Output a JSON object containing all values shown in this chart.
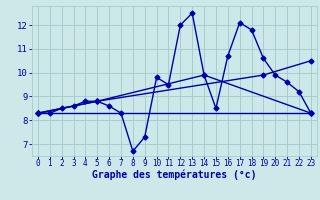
{
  "xlabel": "Graphe des températures (°c)",
  "background_color": "#cde8e8",
  "line_color": "#0000aa",
  "xlim": [
    -0.5,
    23.5
  ],
  "ylim": [
    6.5,
    12.8
  ],
  "xticks": [
    0,
    1,
    2,
    3,
    4,
    5,
    6,
    7,
    8,
    9,
    10,
    11,
    12,
    13,
    14,
    15,
    16,
    17,
    18,
    19,
    20,
    21,
    22,
    23
  ],
  "yticks": [
    7,
    8,
    9,
    10,
    11,
    12
  ],
  "grid_color": "#aacccc",
  "series1_x": [
    0,
    1,
    2,
    3,
    4,
    5,
    6,
    7,
    8,
    9,
    10,
    11,
    12,
    13,
    14,
    15,
    16,
    17,
    18,
    19,
    20,
    21,
    22,
    23
  ],
  "series1_y": [
    8.3,
    8.3,
    8.5,
    8.6,
    8.8,
    8.8,
    8.6,
    8.3,
    6.7,
    7.3,
    9.8,
    9.5,
    12.0,
    12.5,
    9.9,
    8.5,
    10.7,
    12.1,
    11.8,
    10.6,
    9.9,
    9.6,
    9.2,
    8.3
  ],
  "series2_x": [
    0,
    23
  ],
  "series2_y": [
    8.3,
    8.3
  ],
  "series3_x": [
    0,
    5,
    19,
    23
  ],
  "series3_y": [
    8.3,
    8.8,
    9.9,
    10.5
  ],
  "series4_x": [
    0,
    5,
    14,
    23
  ],
  "series4_y": [
    8.3,
    8.8,
    9.9,
    8.3
  ],
  "marker": "D",
  "marker_size": 2.5,
  "linewidth": 1.0,
  "tick_fontsize": 5.5,
  "xlabel_fontsize": 7
}
